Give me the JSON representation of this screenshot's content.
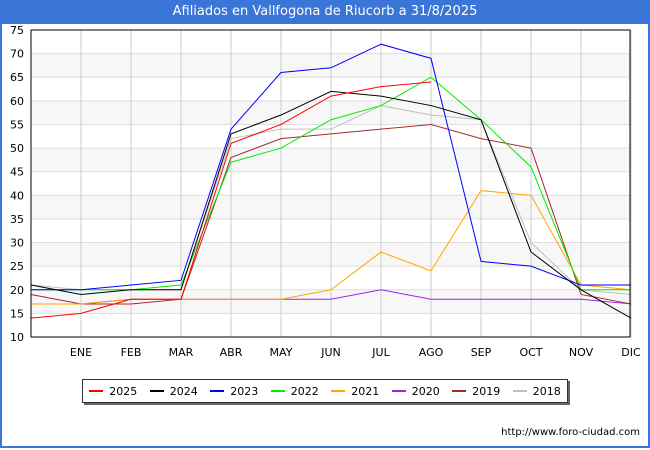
{
  "title": "Afiliados en Vallfogona de Riucorb a 31/8/2025",
  "url": "http://www.foro-ciudad.com",
  "chart_data": {
    "type": "line",
    "title": "Afiliados en Vallfogona de Riucorb a 31/8/2025",
    "categories": [
      "",
      "ENE",
      "FEB",
      "MAR",
      "ABR",
      "MAY",
      "JUN",
      "JUL",
      "AGO",
      "SEP",
      "OCT",
      "NOV",
      "DIC"
    ],
    "ylim": [
      10,
      75
    ],
    "yticks": [
      10,
      15,
      20,
      25,
      30,
      35,
      40,
      45,
      50,
      55,
      60,
      65,
      70,
      75
    ],
    "grid": true,
    "legend_position": "bottom",
    "series": [
      {
        "name": "2025",
        "color": "#ff0000",
        "values": [
          14,
          15,
          18,
          18,
          51,
          55,
          61,
          63,
          64,
          null,
          null,
          null,
          null
        ]
      },
      {
        "name": "2024",
        "color": "#000000",
        "values": [
          21,
          19,
          20,
          20,
          53,
          57,
          62,
          61,
          59,
          56,
          28,
          20,
          14
        ]
      },
      {
        "name": "2023",
        "color": "#0000ff",
        "values": [
          20,
          20,
          21,
          22,
          54,
          66,
          67,
          72,
          69,
          26,
          25,
          21,
          21
        ]
      },
      {
        "name": "2022",
        "color": "#00ee00",
        "values": [
          20,
          20,
          20,
          21,
          47,
          50,
          56,
          59,
          65,
          56,
          46,
          20,
          20
        ]
      },
      {
        "name": "2021",
        "color": "#ffa500",
        "values": [
          17,
          17,
          18,
          18,
          18,
          18,
          20,
          28,
          24,
          41,
          40,
          21,
          20
        ]
      },
      {
        "name": "2020",
        "color": "#a020f0",
        "values": [
          17,
          17,
          18,
          18,
          18,
          18,
          18,
          20,
          18,
          18,
          18,
          18,
          17
        ]
      },
      {
        "name": "2019",
        "color": "#a52a2a",
        "values": [
          19,
          17,
          17,
          18,
          48,
          52,
          53,
          54,
          55,
          52,
          50,
          19,
          17
        ]
      },
      {
        "name": "2018",
        "color": "#c0c0c0",
        "values": [
          21,
          20,
          20,
          20,
          52,
          54,
          54,
          59,
          57,
          56,
          30,
          20,
          19
        ]
      }
    ]
  }
}
